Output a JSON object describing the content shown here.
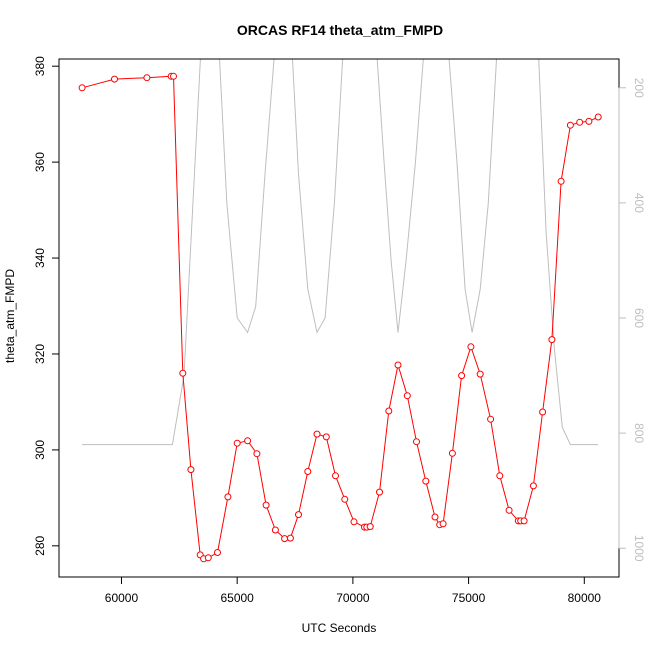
{
  "chart_data": {
    "type": "line",
    "title": "ORCAS RF14 theta_atm_FMPD",
    "xlabel": "UTC Seconds",
    "ylabel": "theta_atm_FMPD",
    "xlim": [
      57300,
      81500
    ],
    "ylim": [
      273.5,
      381.5
    ],
    "x_ticks": [
      60000,
      65000,
      70000,
      75000,
      80000
    ],
    "y_ticks": [
      280,
      300,
      320,
      340,
      360,
      380
    ],
    "grid": false,
    "colors": {
      "primary": "#ff0000",
      "secondary": "#bebebe",
      "axis": "#000000"
    },
    "series": [
      {
        "axis": "left",
        "style": "line-with-open-circles",
        "x": [
          58300,
          59700,
          61100,
          62150,
          62250,
          62650,
          63000,
          63400,
          63550,
          63750,
          64150,
          64600,
          65000,
          65450,
          65850,
          66250,
          66650,
          67050,
          67300,
          67650,
          68050,
          68450,
          68850,
          69250,
          69650,
          70050,
          70500,
          70600,
          70750,
          71150,
          71550,
          71950,
          72350,
          72750,
          73150,
          73550,
          73750,
          73900,
          74300,
          74700,
          75100,
          75500,
          75950,
          76350,
          76750,
          77150,
          77250,
          77400,
          77800,
          78200,
          78600,
          79000,
          79400,
          79800,
          80200,
          80600
        ],
        "y": [
          375.5,
          377.3,
          377.6,
          377.9,
          377.9,
          316,
          295.9,
          278.1,
          277.3,
          277.5,
          278.6,
          290.2,
          301.4,
          301.9,
          299.2,
          288.5,
          283.3,
          281.5,
          281.6,
          286.5,
          295.5,
          303.3,
          302.7,
          294.6,
          289.7,
          285,
          283.9,
          283.9,
          284,
          291.2,
          308.1,
          317.7,
          311.3,
          301.7,
          293.5,
          286,
          284.4,
          284.6,
          299.3,
          315.5,
          321.5,
          315.8,
          306.4,
          294.6,
          287.4,
          285.2,
          285.2,
          285.2,
          292.5,
          307.9,
          323,
          356,
          367.7,
          368.3,
          368.5,
          369.4
        ]
      },
      {
        "axis": "right",
        "style": "line",
        "x": [
          58300,
          62200,
          62700,
          63450,
          63650,
          63900,
          64200,
          64550,
          65000,
          65450,
          65800,
          66200,
          66650,
          67000,
          67350,
          67650,
          68050,
          68450,
          68800,
          69200,
          69600,
          70100,
          70400,
          70700,
          71000,
          71350,
          71650,
          71950,
          72300,
          72700,
          73100,
          73450,
          73750,
          74100,
          74500,
          74850,
          75150,
          75500,
          75850,
          76250,
          76600,
          76900,
          77250,
          77600,
          78000,
          78350,
          78700,
          79050,
          79400,
          79800,
          80600
        ],
        "y": [
          820,
          820,
          700,
          120,
          120,
          120,
          120,
          400,
          600,
          625,
          580,
          350,
          120,
          120,
          120,
          350,
          550,
          625,
          600,
          400,
          120,
          120,
          120,
          120,
          120,
          330,
          500,
          625,
          500,
          330,
          120,
          120,
          120,
          120,
          330,
          550,
          625,
          550,
          400,
          120,
          120,
          120,
          120,
          120,
          120,
          450,
          650,
          790,
          820,
          820,
          820
        ]
      }
    ],
    "secondary_axis": {
      "side": "right",
      "ylim": [
        1050,
        150
      ],
      "ticks": [
        200,
        400,
        600,
        800,
        1000
      ],
      "labels_rotated": true
    }
  }
}
